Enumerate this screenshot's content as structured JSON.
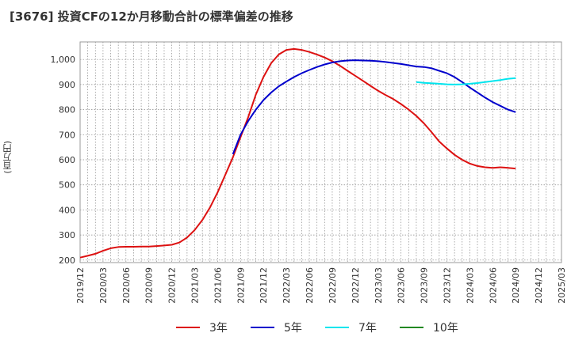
{
  "title": "[3676]  投資CFの12か月移動合計の標準偏差の推移",
  "chart_data": {
    "type": "line",
    "title": "[3676]  投資CFの12か月移動合計の標準偏差の推移",
    "ylabel": "(百万円)",
    "xlabel": "",
    "ylim": [
      190,
      1070
    ],
    "yticks": [
      200,
      300,
      400,
      500,
      600,
      700,
      800,
      900,
      1000
    ],
    "ytick_labels": [
      "200",
      "300",
      "400",
      "500",
      "600",
      "700",
      "800",
      "900",
      "1,000"
    ],
    "xticks": [
      "2019/12",
      "2020/03",
      "2020/06",
      "2020/09",
      "2020/12",
      "2021/03",
      "2021/06",
      "2021/09",
      "2021/12",
      "2022/03",
      "2022/06",
      "2022/09",
      "2022/12",
      "2023/03",
      "2023/06",
      "2023/09",
      "2023/12",
      "2024/03",
      "2024/06",
      "2024/09",
      "2024/12",
      "2025/03"
    ],
    "grid": true,
    "legend_position": "bottom",
    "series": [
      {
        "name": "3年",
        "color": "#dd1111",
        "x": [
          "2019/12",
          "2020/01",
          "2020/02",
          "2020/03",
          "2020/04",
          "2020/05",
          "2020/06",
          "2020/07",
          "2020/08",
          "2020/09",
          "2020/10",
          "2020/11",
          "2020/12",
          "2021/01",
          "2021/02",
          "2021/03",
          "2021/04",
          "2021/05",
          "2021/06",
          "2021/07",
          "2021/08",
          "2021/09",
          "2021/10",
          "2021/11",
          "2021/12",
          "2022/01",
          "2022/02",
          "2022/03",
          "2022/04",
          "2022/05",
          "2022/06",
          "2022/07",
          "2022/08",
          "2022/09",
          "2022/10",
          "2022/11",
          "2022/12",
          "2023/01",
          "2023/02",
          "2023/03",
          "2023/04",
          "2023/05",
          "2023/06",
          "2023/07",
          "2023/08",
          "2023/09",
          "2023/10",
          "2023/11",
          "2023/12",
          "2024/01",
          "2024/02",
          "2024/03",
          "2024/04",
          "2024/05",
          "2024/06",
          "2024/07",
          "2024/08",
          "2024/09"
        ],
        "values": [
          210,
          217,
          225,
          237,
          247,
          252,
          253,
          253,
          254,
          254,
          256,
          258,
          261,
          270,
          290,
          320,
          360,
          410,
          470,
          540,
          610,
          690,
          770,
          860,
          930,
          985,
          1020,
          1038,
          1042,
          1038,
          1030,
          1020,
          1008,
          993,
          975,
          955,
          935,
          915,
          895,
          875,
          858,
          842,
          822,
          800,
          775,
          745,
          710,
          673,
          645,
          620,
          600,
          585,
          575,
          570,
          568,
          570,
          568,
          565
        ]
      },
      {
        "name": "5年",
        "color": "#0000cc",
        "x": [
          "2021/08",
          "2021/09",
          "2021/10",
          "2021/11",
          "2021/12",
          "2022/01",
          "2022/02",
          "2022/03",
          "2022/04",
          "2022/05",
          "2022/06",
          "2022/07",
          "2022/08",
          "2022/09",
          "2022/10",
          "2022/11",
          "2022/12",
          "2023/01",
          "2023/02",
          "2023/03",
          "2023/04",
          "2023/05",
          "2023/06",
          "2023/07",
          "2023/08",
          "2023/09",
          "2023/10",
          "2023/11",
          "2023/12",
          "2024/01",
          "2024/02",
          "2024/03",
          "2024/04",
          "2024/05",
          "2024/06",
          "2024/07",
          "2024/08",
          "2024/09"
        ],
        "values": [
          622,
          700,
          755,
          800,
          838,
          868,
          893,
          912,
          930,
          945,
          958,
          970,
          980,
          988,
          993,
          996,
          997,
          996,
          995,
          993,
          990,
          986,
          982,
          977,
          972,
          970,
          965,
          955,
          945,
          930,
          910,
          888,
          868,
          848,
          830,
          815,
          800,
          790
        ]
      },
      {
        "name": "7年",
        "color": "#00e5ee",
        "x": [
          "2023/08",
          "2023/09",
          "2023/10",
          "2023/11",
          "2023/12",
          "2024/01",
          "2024/02",
          "2024/03",
          "2024/04",
          "2024/05",
          "2024/06",
          "2024/07",
          "2024/08",
          "2024/09"
        ],
        "values": [
          910,
          907,
          905,
          903,
          901,
          900,
          901,
          903,
          906,
          910,
          914,
          918,
          923,
          926
        ]
      },
      {
        "name": "10年",
        "color": "#228822",
        "x": [],
        "values": []
      }
    ]
  }
}
